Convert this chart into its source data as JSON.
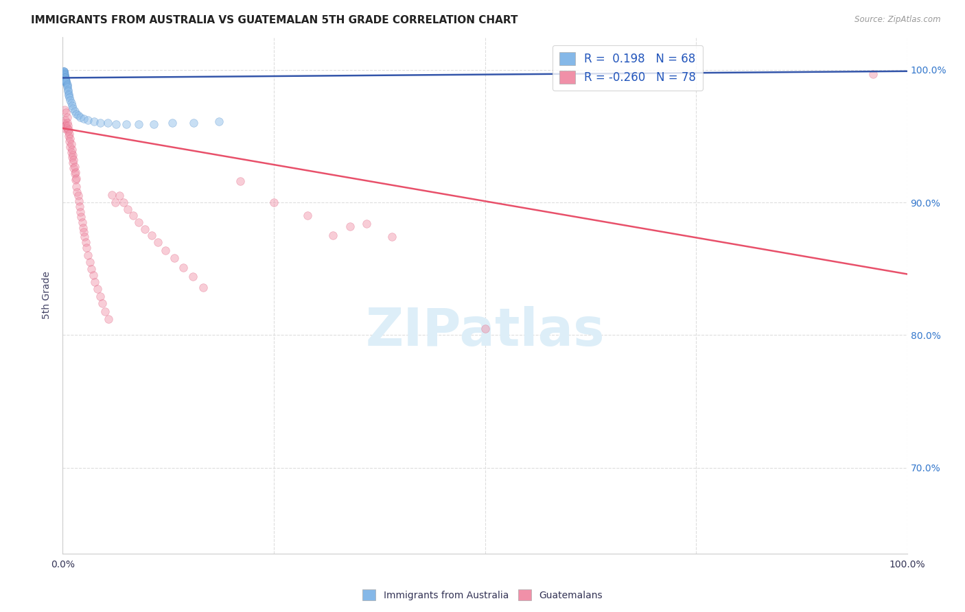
{
  "title": "IMMIGRANTS FROM AUSTRALIA VS GUATEMALAN 5TH GRADE CORRELATION CHART",
  "source": "Source: ZipAtlas.com",
  "ylabel": "5th Grade",
  "ytick_labels": [
    "100.0%",
    "90.0%",
    "80.0%",
    "70.0%"
  ],
  "ytick_values": [
    1.0,
    0.9,
    0.8,
    0.7
  ],
  "xlim": [
    0.0,
    1.0
  ],
  "ylim": [
    0.635,
    1.025
  ],
  "blue_scatter_x": [
    0.0,
    0.0,
    0.001,
    0.001,
    0.001,
    0.001,
    0.001,
    0.001,
    0.001,
    0.001,
    0.001,
    0.001,
    0.001,
    0.001,
    0.001,
    0.001,
    0.001,
    0.001,
    0.001,
    0.001,
    0.002,
    0.002,
    0.002,
    0.002,
    0.002,
    0.002,
    0.002,
    0.002,
    0.002,
    0.002,
    0.003,
    0.003,
    0.003,
    0.003,
    0.003,
    0.003,
    0.004,
    0.004,
    0.004,
    0.004,
    0.005,
    0.005,
    0.005,
    0.006,
    0.006,
    0.007,
    0.007,
    0.008,
    0.009,
    0.01,
    0.011,
    0.012,
    0.014,
    0.016,
    0.018,
    0.021,
    0.025,
    0.03,
    0.037,
    0.044,
    0.053,
    0.063,
    0.075,
    0.09,
    0.108,
    0.13,
    0.155,
    0.185
  ],
  "blue_scatter_y": [
    0.994,
    0.995,
    0.993,
    0.994,
    0.995,
    0.996,
    0.997,
    0.996,
    0.997,
    0.998,
    0.997,
    0.998,
    0.998,
    0.999,
    0.999,
    0.999,
    0.998,
    0.997,
    0.996,
    0.995,
    0.993,
    0.994,
    0.995,
    0.996,
    0.997,
    0.996,
    0.995,
    0.994,
    0.993,
    0.992,
    0.992,
    0.993,
    0.994,
    0.993,
    0.992,
    0.991,
    0.99,
    0.991,
    0.992,
    0.991,
    0.989,
    0.988,
    0.987,
    0.985,
    0.984,
    0.982,
    0.981,
    0.979,
    0.977,
    0.975,
    0.973,
    0.971,
    0.969,
    0.967,
    0.966,
    0.964,
    0.963,
    0.962,
    0.961,
    0.96,
    0.96,
    0.959,
    0.959,
    0.959,
    0.959,
    0.96,
    0.96,
    0.961
  ],
  "blue_line_x": [
    0.0,
    1.0
  ],
  "blue_line_y": [
    0.994,
    0.999
  ],
  "pink_scatter_x": [
    0.001,
    0.002,
    0.002,
    0.003,
    0.003,
    0.004,
    0.004,
    0.005,
    0.005,
    0.005,
    0.006,
    0.006,
    0.007,
    0.007,
    0.008,
    0.008,
    0.009,
    0.009,
    0.01,
    0.01,
    0.011,
    0.011,
    0.012,
    0.012,
    0.013,
    0.013,
    0.014,
    0.014,
    0.015,
    0.015,
    0.016,
    0.016,
    0.017,
    0.018,
    0.019,
    0.02,
    0.021,
    0.022,
    0.023,
    0.024,
    0.025,
    0.026,
    0.027,
    0.028,
    0.03,
    0.032,
    0.034,
    0.036,
    0.038,
    0.041,
    0.044,
    0.047,
    0.05,
    0.054,
    0.058,
    0.062,
    0.067,
    0.072,
    0.077,
    0.083,
    0.09,
    0.097,
    0.105,
    0.113,
    0.122,
    0.132,
    0.143,
    0.154,
    0.166,
    0.21,
    0.25,
    0.29,
    0.32,
    0.34,
    0.36,
    0.39,
    0.5,
    0.96
  ],
  "pink_scatter_y": [
    0.96,
    0.97,
    0.956,
    0.962,
    0.958,
    0.968,
    0.958,
    0.964,
    0.96,
    0.956,
    0.958,
    0.954,
    0.955,
    0.95,
    0.952,
    0.946,
    0.948,
    0.942,
    0.944,
    0.938,
    0.94,
    0.934,
    0.936,
    0.93,
    0.932,
    0.926,
    0.927,
    0.922,
    0.923,
    0.917,
    0.918,
    0.912,
    0.908,
    0.905,
    0.901,
    0.897,
    0.893,
    0.889,
    0.885,
    0.881,
    0.878,
    0.874,
    0.87,
    0.866,
    0.86,
    0.855,
    0.85,
    0.845,
    0.84,
    0.835,
    0.829,
    0.824,
    0.818,
    0.812,
    0.906,
    0.9,
    0.905,
    0.9,
    0.895,
    0.89,
    0.885,
    0.88,
    0.875,
    0.87,
    0.864,
    0.858,
    0.851,
    0.844,
    0.836,
    0.916,
    0.9,
    0.89,
    0.875,
    0.882,
    0.884,
    0.874,
    0.805,
    0.997
  ],
  "pink_line_x": [
    0.0,
    1.0
  ],
  "pink_line_y": [
    0.956,
    0.846
  ],
  "scatter_size": 70,
  "scatter_alpha": 0.45,
  "blue_color": "#85b8e8",
  "blue_edge_color": "#5590cc",
  "blue_line_color": "#3355aa",
  "pink_color": "#f090a8",
  "pink_edge_color": "#e06080",
  "pink_line_color": "#e8506a",
  "background_color": "#ffffff",
  "grid_color": "#dddddd",
  "title_color": "#222222",
  "axis_label_color": "#333355",
  "right_axis_color": "#3377cc",
  "watermark": "ZIPatlas",
  "watermark_color": "#ddeef8",
  "legend_blue_label": "R =  0.198   N = 68",
  "legend_pink_label": "R = -0.260   N = 78",
  "bottom_legend_blue": "Immigrants from Australia",
  "bottom_legend_pink": "Guatemalans"
}
